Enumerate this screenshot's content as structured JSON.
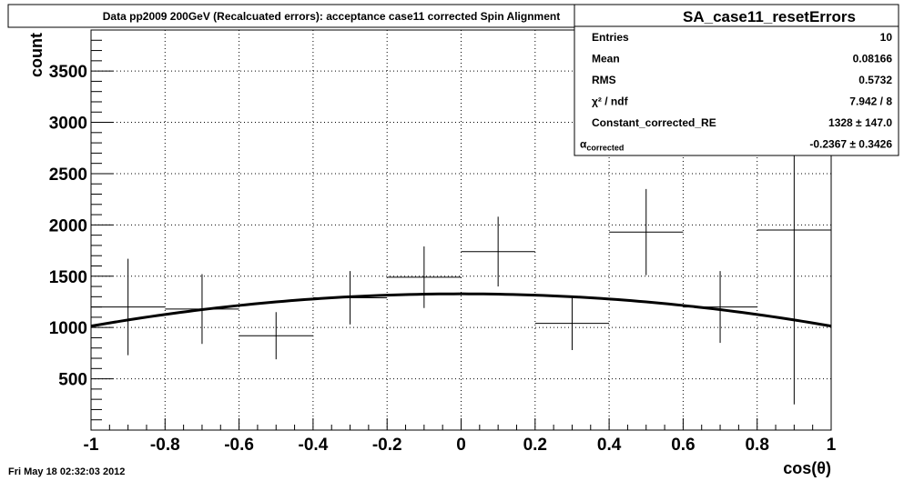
{
  "title": "Data pp2009 200GeV (Recalcuated errors): acceptance case11 corrected Spin Alignment",
  "footer_timestamp": "Fri May 18 02:32:03 2012",
  "stats": {
    "name": "SA_case11_resetErrors",
    "rows": [
      {
        "label": "Entries",
        "value": "10"
      },
      {
        "label": "Mean",
        "value": "0.08166"
      },
      {
        "label": "RMS",
        "value": "0.5732"
      },
      {
        "label": "χ² / ndf",
        "value": "7.942 / 8"
      },
      {
        "label": "Constant_corrected_RE",
        "value": "1328 ± 147.0"
      },
      {
        "label": "α_corrected",
        "value": "-0.2367 ± 0.3426"
      }
    ]
  },
  "chart_data": {
    "type": "scatter",
    "title": "Data pp2009 200GeV (Recalcuated errors): acceptance case11 corrected Spin Alignment",
    "xlabel": "cos(θ)",
    "ylabel": "count",
    "xlim": [
      -1,
      1
    ],
    "ylim": [
      0,
      3900
    ],
    "x_ticks": [
      -1,
      -0.8,
      -0.6,
      -0.4,
      -0.2,
      0,
      0.2,
      0.4,
      0.6,
      0.8,
      1
    ],
    "x_tick_labels": [
      "-1",
      "-0.8",
      "-0.6",
      "-0.4",
      "-0.2",
      "0",
      "0.2",
      "0.4",
      "0.6",
      "0.8",
      "1"
    ],
    "y_ticks": [
      500,
      1000,
      1500,
      2000,
      2500,
      3000,
      3500
    ],
    "y_tick_labels": [
      "500",
      "1000",
      "1500",
      "2000",
      "2500",
      "3000",
      "3500"
    ],
    "grid": true,
    "points": [
      {
        "x": -0.9,
        "y": 1200,
        "xerr": 0.1,
        "yerr": 470
      },
      {
        "x": -0.7,
        "y": 1180,
        "xerr": 0.1,
        "yerr": 340
      },
      {
        "x": -0.5,
        "y": 920,
        "xerr": 0.1,
        "yerr": 230
      },
      {
        "x": -0.3,
        "y": 1290,
        "xerr": 0.1,
        "yerr": 260
      },
      {
        "x": -0.1,
        "y": 1490,
        "xerr": 0.1,
        "yerr": 300
      },
      {
        "x": 0.1,
        "y": 1740,
        "xerr": 0.1,
        "yerr": 340
      },
      {
        "x": 0.3,
        "y": 1040,
        "xerr": 0.1,
        "yerr": 260
      },
      {
        "x": 0.5,
        "y": 1930,
        "xerr": 0.1,
        "yerr": 420
      },
      {
        "x": 0.7,
        "y": 1200,
        "xerr": 0.1,
        "yerr": 350
      },
      {
        "x": 0.9,
        "y": 1950,
        "xerr": 0.1,
        "yerr": 1700
      }
    ],
    "fit": {
      "constant": 1328,
      "alpha": -0.2367
    }
  }
}
